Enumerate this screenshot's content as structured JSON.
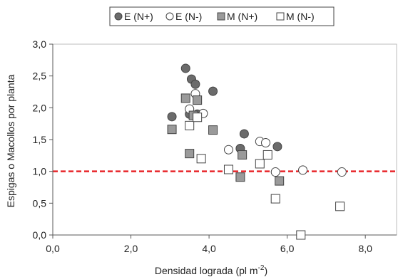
{
  "chart_data": {
    "type": "scatter",
    "xlabel_main": "Densidad lograda (pl m",
    "xlabel_sup": "-2",
    "xlabel_close": ")",
    "ylabel": "Espigas o Macollos por planta",
    "xlim": [
      0,
      8.8
    ],
    "ylim": [
      0,
      3.0
    ],
    "xticks": [
      "0,0",
      "2,0",
      "4,0",
      "6,0",
      "8,0"
    ],
    "xtick_values": [
      0,
      2,
      4,
      6,
      8
    ],
    "yticks": [
      "0,0",
      "0,5",
      "1,0",
      "1,5",
      "2,0",
      "2,5",
      "3,0"
    ],
    "ytick_values": [
      0,
      0.5,
      1.0,
      1.5,
      2.0,
      2.5,
      3.0
    ],
    "grid": false,
    "legend_position": "top",
    "reference_line": {
      "y": 1.0,
      "color": "#e8262a",
      "style": "dashed"
    },
    "series": [
      {
        "name": "E (N+)",
        "marker": "circle",
        "fill": "#6b6b6b",
        "points": [
          [
            3.4,
            2.62
          ],
          [
            3.55,
            2.45
          ],
          [
            3.65,
            2.37
          ],
          [
            4.1,
            2.26
          ],
          [
            3.05,
            1.86
          ],
          [
            3.5,
            1.9
          ],
          [
            3.7,
            1.9
          ],
          [
            4.8,
            1.36
          ],
          [
            4.9,
            1.59
          ],
          [
            5.75,
            1.39
          ]
        ]
      },
      {
        "name": "E (N-)",
        "marker": "circle",
        "fill": "#ffffff",
        "points": [
          [
            3.5,
            1.98
          ],
          [
            3.65,
            2.22
          ],
          [
            3.85,
            1.91
          ],
          [
            4.5,
            1.34
          ],
          [
            5.3,
            1.47
          ],
          [
            5.45,
            1.45
          ],
          [
            5.7,
            0.99
          ],
          [
            6.4,
            1.02
          ],
          [
            7.4,
            0.99
          ]
        ]
      },
      {
        "name": "M (N+)",
        "marker": "square",
        "fill": "#9a9a9a",
        "points": [
          [
            3.05,
            1.66
          ],
          [
            3.4,
            2.15
          ],
          [
            3.6,
            1.88
          ],
          [
            3.7,
            2.12
          ],
          [
            4.1,
            1.65
          ],
          [
            3.5,
            1.28
          ],
          [
            4.85,
            1.26
          ],
          [
            4.8,
            0.91
          ],
          [
            5.8,
            0.85
          ]
        ]
      },
      {
        "name": "M (N-)",
        "marker": "square",
        "fill": "#ffffff",
        "points": [
          [
            3.5,
            1.72
          ],
          [
            3.7,
            1.85
          ],
          [
            3.8,
            1.2
          ],
          [
            4.5,
            1.03
          ],
          [
            5.3,
            1.12
          ],
          [
            5.5,
            1.26
          ],
          [
            5.7,
            0.57
          ],
          [
            6.35,
            0.0
          ],
          [
            7.35,
            0.45
          ]
        ]
      }
    ]
  }
}
